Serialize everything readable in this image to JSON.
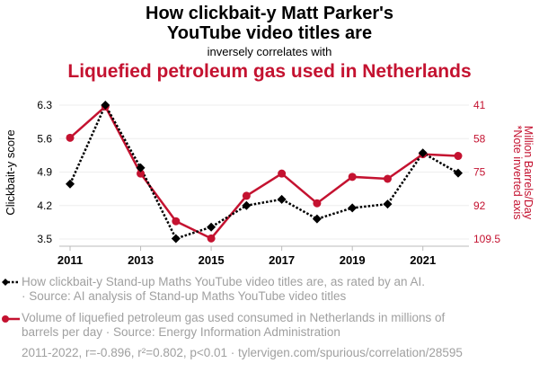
{
  "title_line1": "How clickbait-y Matt Parker's",
  "title_line2": "YouTube video titles are",
  "subtitle": "inversely correlates with",
  "title2": "Liquefied petroleum gas used in Netherlands",
  "colors": {
    "series1": "#000000",
    "series2": "#c41230"
  },
  "chart_data": {
    "type": "line",
    "x": [
      2011,
      2012,
      2013,
      2014,
      2015,
      2016,
      2017,
      2018,
      2019,
      2020,
      2021,
      2022
    ],
    "xticks": [
      "2011",
      "2013",
      "2015",
      "2017",
      "2019",
      "2021"
    ],
    "ylabel_left": "Clickbait-y score",
    "ylabel_right": "Million Barrels/Day",
    "ylabel_right_note": "*Note inverted axis",
    "yticks_left": [
      "6.3",
      "5.6",
      "4.9",
      "4.2",
      "3.5"
    ],
    "yticks_right": [
      "41",
      "58",
      "75",
      "92",
      "109.5"
    ],
    "ylim_left": [
      3.5,
      6.3
    ],
    "ylim_right": [
      41,
      109.5
    ],
    "right_axis_inverted": true,
    "grid": true,
    "series": [
      {
        "name": "How clickbait-y Stand-up Maths YouTube video titles are, as rated by an AI.",
        "axis": "left",
        "style": "dotted, diamond markers",
        "values": [
          4.65,
          6.3,
          4.99,
          3.51,
          3.75,
          4.2,
          4.33,
          3.92,
          4.15,
          4.23,
          5.3,
          4.88
        ]
      },
      {
        "name": "Volume of liquefied petroleum gas used consumed in Netherlands in millions of barrels per day",
        "axis": "right",
        "style": "solid, circle markers",
        "values": [
          57.7,
          41.7,
          76.0,
          100.4,
          109.2,
          87.4,
          76.0,
          91.2,
          77.7,
          78.7,
          66.1,
          67.0
        ]
      }
    ]
  },
  "legend": {
    "s1_line1": "How clickbait-y Stand-up Maths YouTube video titles are, as rated by an AI.",
    "s1_line2": "· Source: AI analysis of Stand-up Maths YouTube video titles",
    "s2_line1": "Volume of liquefied petroleum gas used consumed in Netherlands in millions of",
    "s2_line2": "barrels per day · Source: Energy Information Administration",
    "footer": "2011-2022, r=-0.896, r²=0.802, p<0.01 · tylervigen.com/spurious/correlation/28595"
  }
}
